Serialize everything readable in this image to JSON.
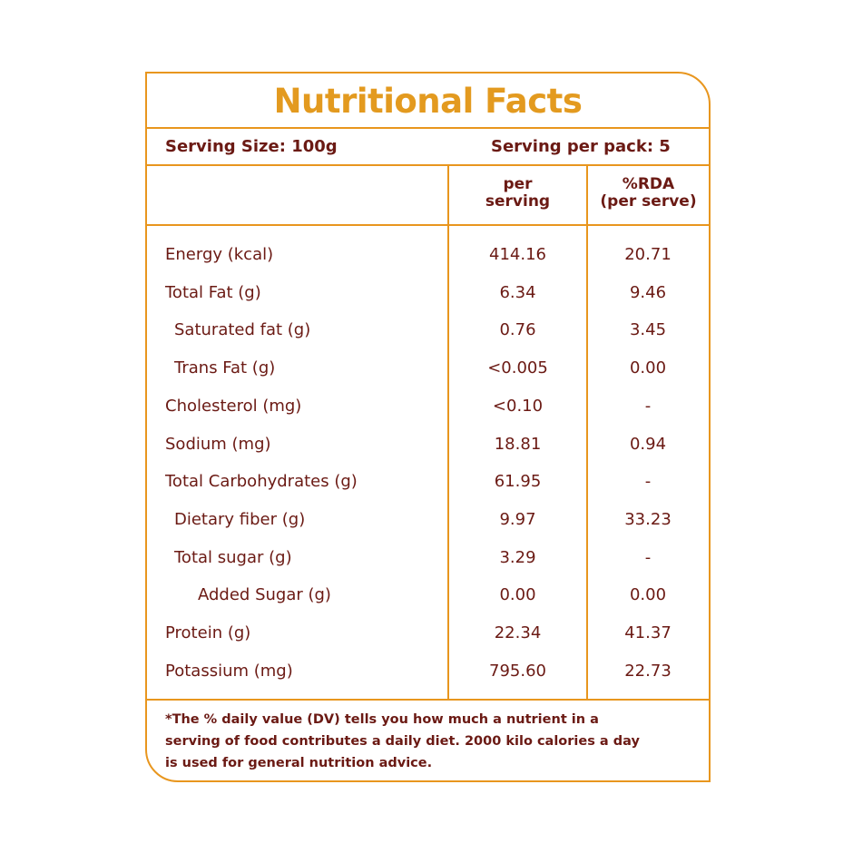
{
  "title": "Nutritional Facts",
  "serving_size": "Serving Size: 100g",
  "serving_per_pack": "Serving per pack: 5",
  "headers": {
    "col1_line1": "per",
    "col1_line2": "serving",
    "col2_line1": "%RDA",
    "col2_line2": "(per serve)"
  },
  "rows": [
    {
      "label": "Energy (kcal)",
      "per_serving": "414.16",
      "rda": "20.71"
    },
    {
      "label": "Total Fat (g)",
      "per_serving": "6.34",
      "rda": "9.46"
    },
    {
      "label": "Saturated fat (g)",
      "per_serving": "0.76",
      "rda": "3.45"
    },
    {
      "label": "Trans Fat (g)",
      "per_serving": "<0.005",
      "rda": "0.00"
    },
    {
      "label": "Cholesterol (mg)",
      "per_serving": "<0.10",
      "rda": "-"
    },
    {
      "label": "Sodium (mg)",
      "per_serving": "18.81",
      "rda": "0.94"
    },
    {
      "label": "Total Carbohydrates  (g)",
      "per_serving": "61.95",
      "rda": "-"
    },
    {
      "label": "Dietary fiber (g)",
      "per_serving": "9.97",
      "rda": "33.23"
    },
    {
      "label": "Total sugar (g)",
      "per_serving": "3.29",
      "rda": "-"
    },
    {
      "label": "Added Sugar (g)",
      "per_serving": "0.00",
      "rda": "0.00"
    },
    {
      "label": "Protein (g)",
      "per_serving": "22.34",
      "rda": "41.37"
    },
    {
      "label": "Potassium (mg)",
      "per_serving": "795.60",
      "rda": "22.73"
    }
  ],
  "footnote": "*The % daily value (DV) tells you how much a nutrient in a serving of food contributes a daily diet. 2000 kilo calories a day is used for general nutrition advice."
}
